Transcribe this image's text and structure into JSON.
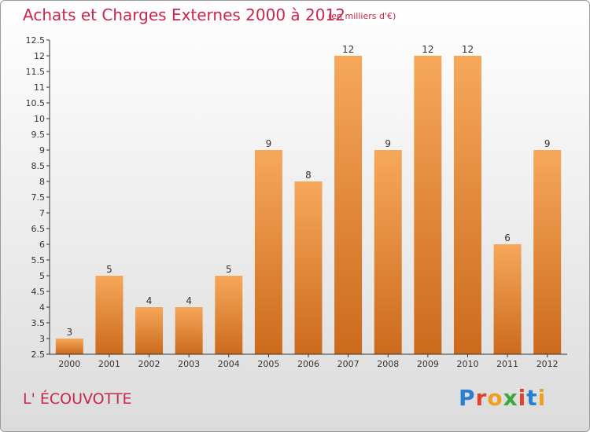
{
  "header": {
    "title": "Achats et Charges Externes 2000 à 2012",
    "subtitle": "(en milliers d'€)"
  },
  "footer": {
    "commune": "L' ÉCOUVOTTE",
    "brand": "Proxiti"
  },
  "colors": {
    "title": "#c8264a",
    "bar_top": "#f6a85a",
    "bar_bottom": "#cc6a1c",
    "axis": "#333333"
  },
  "chart_data": {
    "type": "bar",
    "title": "Achats et Charges Externes 2000 à 2012",
    "subtitle": "(en milliers d'€)",
    "xlabel": "",
    "ylabel": "",
    "categories": [
      "2000",
      "2001",
      "2002",
      "2003",
      "2004",
      "2005",
      "2006",
      "2007",
      "2008",
      "2009",
      "2010",
      "2011",
      "2012"
    ],
    "values": [
      3,
      5,
      4,
      4,
      5,
      9,
      8,
      12,
      9,
      12,
      12,
      6,
      9
    ],
    "data_labels": [
      "3",
      "5",
      "4",
      "4",
      "5",
      "9",
      "8",
      "12",
      "9",
      "12",
      "12",
      "6",
      "9"
    ],
    "ylim": [
      2.5,
      12.5
    ],
    "yticks": [
      "2.5",
      "3",
      "3.5",
      "4",
      "4.5",
      "5",
      "5.5",
      "6",
      "6.5",
      "7",
      "7.5",
      "8",
      "8.5",
      "9",
      "9.5",
      "10",
      "10.5",
      "11",
      "11.5",
      "12",
      "12.5"
    ],
    "grid": false,
    "legend": "none"
  }
}
